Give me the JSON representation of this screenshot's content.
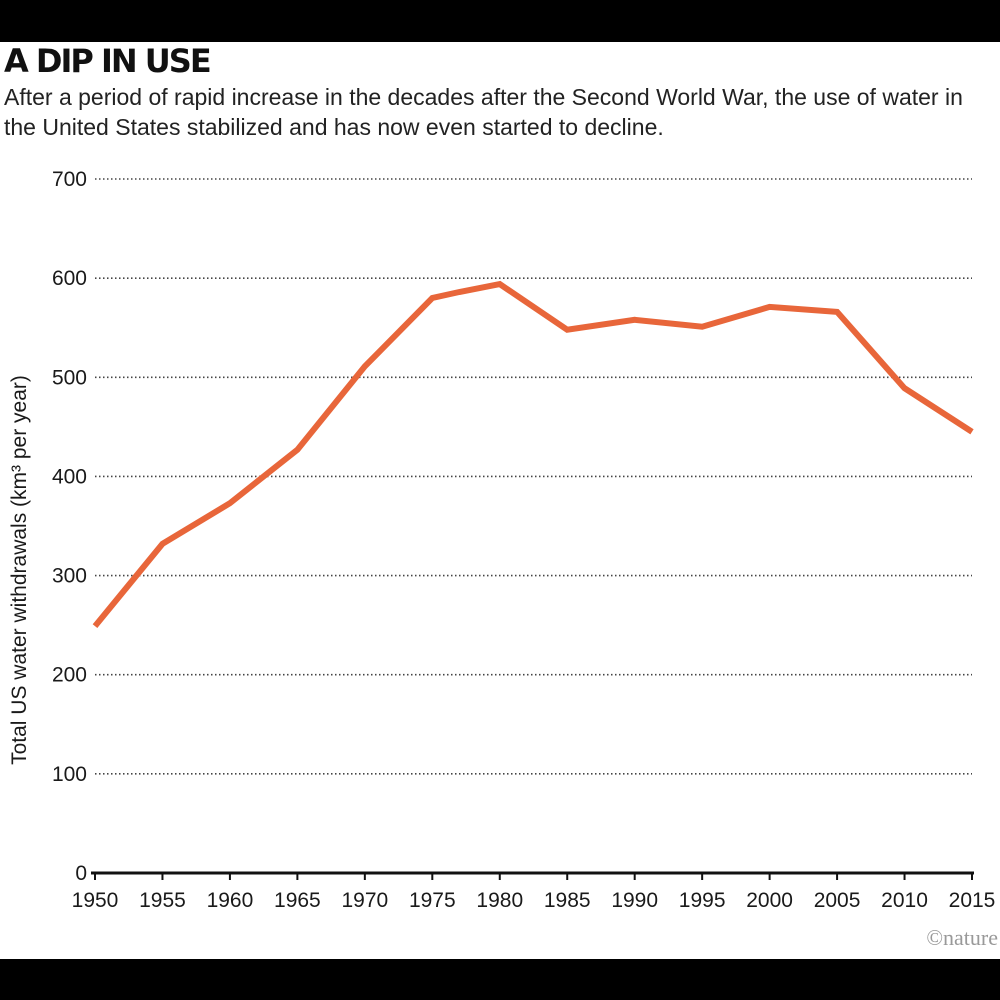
{
  "chart_data": {
    "type": "line",
    "title": "A DIP IN USE",
    "subtitle": "After a period of rapid increase in the decades after the Second World War, the use of water in the United States stabilized and has now even started to decline.",
    "ylabel": "Total US water withdrawals (km³ per year)",
    "xlabel": "",
    "ylim": [
      0,
      700
    ],
    "yticks": [
      0,
      100,
      200,
      300,
      400,
      500,
      600,
      700
    ],
    "xlim": [
      1950,
      2015
    ],
    "xticks": [
      1950,
      1955,
      1960,
      1965,
      1970,
      1975,
      1980,
      1985,
      1990,
      1995,
      2000,
      2005,
      2010,
      2015
    ],
    "grid": "horizontal dotted",
    "series": [
      {
        "name": "Total US water withdrawals",
        "color": "#e8663a",
        "x": [
          1950,
          1955,
          1960,
          1965,
          1970,
          1975,
          1977,
          1980,
          1985,
          1990,
          1995,
          2000,
          2005,
          2010,
          2015
        ],
        "values": [
          249,
          332,
          373,
          427,
          511,
          580,
          586,
          594,
          548,
          558,
          551,
          571,
          566,
          489,
          445
        ]
      }
    ]
  },
  "credit": "©nature"
}
